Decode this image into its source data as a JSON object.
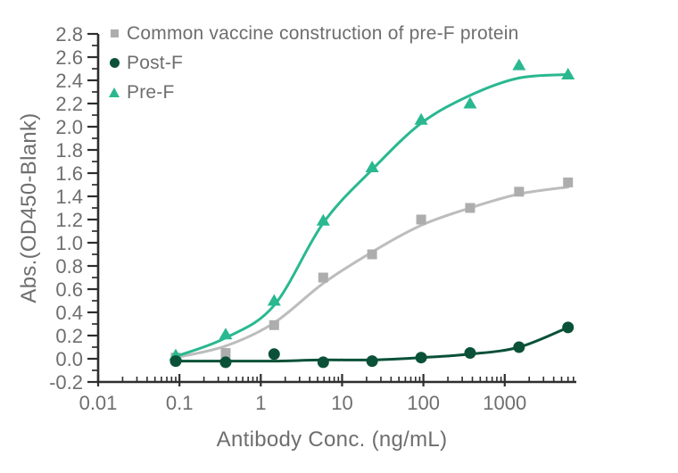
{
  "chart_data": {
    "type": "scatter",
    "title": "",
    "x_label": "Antibody Conc. (ng/mL)",
    "y_label": "Abs.(OD450-Blank)",
    "x_scale": "log",
    "x_range_log": [
      -2,
      3.88
    ],
    "y_range": [
      -0.2,
      2.8
    ],
    "y_tick_step": 0.2,
    "grid": "off",
    "legend_position": "top-left-inside",
    "x_major_ticks": [
      0.01,
      0.1,
      1,
      10,
      100,
      1000
    ],
    "x_tick_labels": [
      "0.01",
      "0.1",
      "1",
      "10",
      "100",
      "1000"
    ],
    "y_tick_labels": [
      "-0.2",
      "0.0",
      "0.2",
      "0.4",
      "0.6",
      "0.8",
      "1.0",
      "1.2",
      "1.4",
      "1.6",
      "1.8",
      "2.0",
      "2.2",
      "2.4",
      "2.6",
      "2.8"
    ],
    "concentrations_ng_ml": [
      0.09,
      0.37,
      1.46,
      5.86,
      23.4,
      93.8,
      375,
      1500,
      6000
    ],
    "series": [
      {
        "name": "Common vaccine construction of pre-F protein",
        "marker": "square",
        "color": "#adadad",
        "line_color": "#bdbdbd",
        "z": 1,
        "values": [
          0.01,
          0.05,
          0.29,
          0.7,
          0.9,
          1.2,
          1.3,
          1.44,
          1.52
        ],
        "curve": [
          0.01,
          0.11,
          0.31,
          0.65,
          0.92,
          1.15,
          1.3,
          1.42,
          1.48
        ]
      },
      {
        "name": "Post-F",
        "marker": "circle",
        "color": "#0a5138",
        "line_color": "#0a5138",
        "z": 3,
        "values": [
          -0.02,
          -0.03,
          0.04,
          -0.03,
          -0.02,
          0.01,
          0.05,
          0.1,
          0.27
        ],
        "curve": [
          -0.02,
          -0.02,
          -0.02,
          -0.01,
          -0.01,
          0.01,
          0.04,
          0.1,
          0.27
        ]
      },
      {
        "name": "Pre-F",
        "marker": "triangle",
        "color": "#2ab890",
        "line_color": "#2ab890",
        "z": 2,
        "values": [
          0.03,
          0.21,
          0.5,
          1.19,
          1.65,
          2.06,
          2.2,
          2.53,
          2.45
        ],
        "curve": [
          0.02,
          0.18,
          0.46,
          1.17,
          1.63,
          2.03,
          2.27,
          2.42,
          2.45
        ]
      }
    ],
    "colors": {
      "axis": "#2e2e2e",
      "text": "#6e6e6e",
      "background": "#ffffff"
    }
  }
}
